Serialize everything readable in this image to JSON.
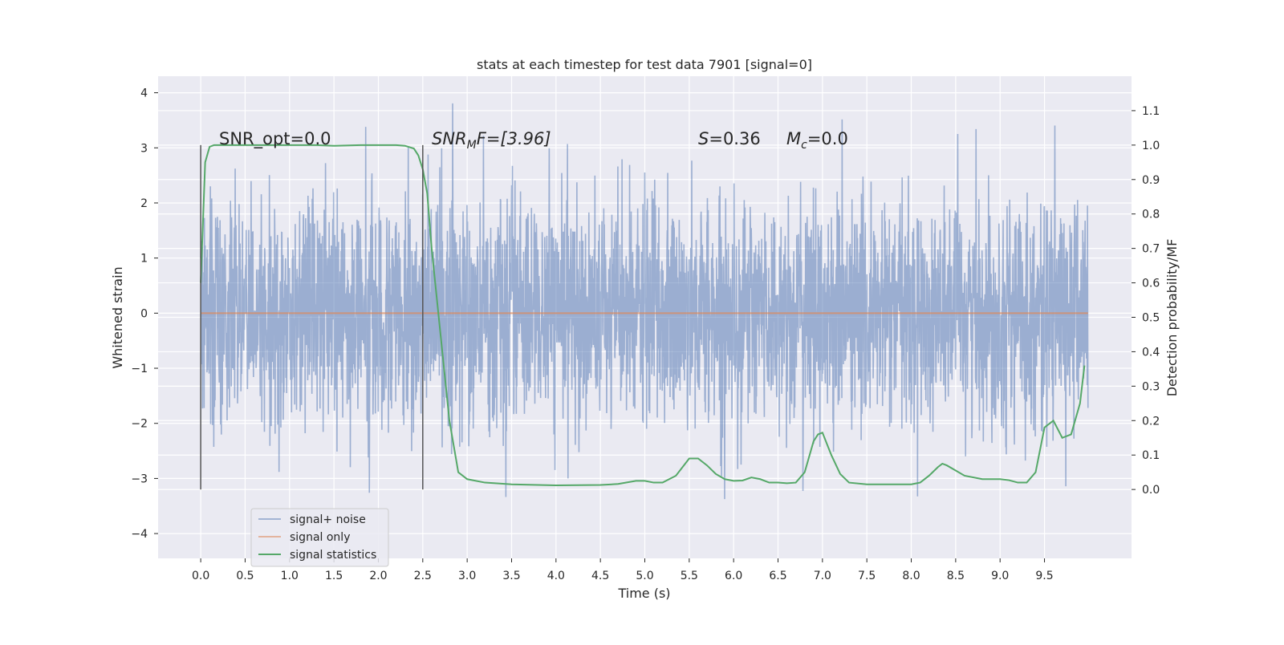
{
  "chart_data": {
    "type": "line",
    "title": "stats at each timestep for test data 7901 [signal=0]",
    "xlabel": "Time (s)",
    "ylabel_left": "Whitened strain",
    "ylabel_right": "Detection probability/MF",
    "xlim": [
      -0.48,
      10.48
    ],
    "ylim_left": [
      -4.45,
      4.3
    ],
    "ylim_right": [
      -0.2,
      1.2
    ],
    "x_ticks": [
      "0.0",
      "0.5",
      "1.0",
      "1.5",
      "2.0",
      "2.5",
      "3.0",
      "3.5",
      "4.0",
      "4.5",
      "5.0",
      "5.5",
      "6.0",
      "6.5",
      "7.0",
      "7.5",
      "8.0",
      "8.5",
      "9.0",
      "9.5"
    ],
    "y_left_ticks": [
      "4",
      "3",
      "2",
      "1",
      "0",
      "−1",
      "−2",
      "−3",
      "−4"
    ],
    "y_right_ticks": [
      "1.1",
      "1.0",
      "0.9",
      "0.8",
      "0.7",
      "0.6",
      "0.5",
      "0.4",
      "0.3",
      "0.2",
      "0.1",
      "0.0"
    ],
    "grid": true,
    "legend_position": "lower-left",
    "annotations": {
      "snr_opt": "SNR_opt=0.0",
      "snr_mf_sym": "SNR",
      "snr_mf_sub": "M",
      "snr_mf_rest": "F=[3.96]",
      "s_sym": "S",
      "s_rest": "=0.36",
      "mc_sym": "M",
      "mc_sub": "c",
      "mc_rest": "=0.0"
    },
    "vertical_markers": [
      0.0,
      2.5
    ],
    "series": [
      {
        "name": "signal+ noise",
        "color": "#4c72b0",
        "note_range": [
          0.0,
          9.99
        ],
        "noise_sigma": 1.0
      },
      {
        "name": "signal only",
        "color": "#dd8452",
        "x": [
          0.0,
          9.99
        ],
        "y": [
          0.0,
          0.0
        ]
      },
      {
        "name": "signal statistics",
        "color": "#55a868",
        "x": [
          0.0,
          0.05,
          0.1,
          0.15,
          0.2,
          0.3,
          0.5,
          0.8,
          1.0,
          1.3,
          1.5,
          1.8,
          2.0,
          2.2,
          2.3,
          2.4,
          2.45,
          2.5,
          2.55,
          2.6,
          2.7,
          2.8,
          2.9,
          3.0,
          3.2,
          3.5,
          4.0,
          4.5,
          4.7,
          4.9,
          5.0,
          5.1,
          5.2,
          5.35,
          5.5,
          5.6,
          5.7,
          5.8,
          5.9,
          6.0,
          6.1,
          6.2,
          6.3,
          6.4,
          6.5,
          6.6,
          6.7,
          6.8,
          6.9,
          6.95,
          7.0,
          7.1,
          7.2,
          7.3,
          7.5,
          7.7,
          7.9,
          8.0,
          8.1,
          8.2,
          8.3,
          8.35,
          8.4,
          8.5,
          8.6,
          8.8,
          9.0,
          9.1,
          9.2,
          9.3,
          9.4,
          9.5,
          9.6,
          9.7,
          9.8,
          9.9,
          9.95
        ],
        "y": [
          0.6,
          0.95,
          0.995,
          1.0,
          1.0,
          1.0,
          1.0,
          1.0,
          1.0,
          1.0,
          0.998,
          1.0,
          1.0,
          1.0,
          0.998,
          0.99,
          0.97,
          0.93,
          0.86,
          0.7,
          0.45,
          0.2,
          0.05,
          0.03,
          0.02,
          0.015,
          0.012,
          0.013,
          0.016,
          0.025,
          0.025,
          0.02,
          0.02,
          0.04,
          0.09,
          0.09,
          0.07,
          0.045,
          0.03,
          0.025,
          0.026,
          0.035,
          0.03,
          0.02,
          0.02,
          0.018,
          0.02,
          0.05,
          0.14,
          0.16,
          0.165,
          0.1,
          0.045,
          0.02,
          0.015,
          0.015,
          0.015,
          0.015,
          0.02,
          0.04,
          0.065,
          0.075,
          0.07,
          0.055,
          0.04,
          0.03,
          0.03,
          0.027,
          0.02,
          0.02,
          0.05,
          0.18,
          0.2,
          0.15,
          0.16,
          0.25,
          0.36
        ]
      }
    ]
  }
}
